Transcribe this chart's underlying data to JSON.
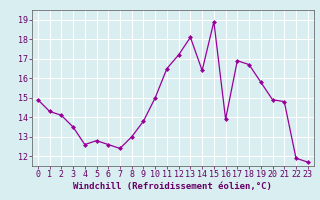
{
  "x": [
    0,
    1,
    2,
    3,
    4,
    5,
    6,
    7,
    8,
    9,
    10,
    11,
    12,
    13,
    14,
    15,
    16,
    17,
    18,
    19,
    20,
    21,
    22,
    23
  ],
  "y": [
    14.9,
    14.3,
    14.1,
    13.5,
    12.6,
    12.8,
    12.6,
    12.4,
    13.0,
    13.8,
    15.0,
    16.5,
    17.2,
    18.1,
    16.4,
    18.9,
    13.9,
    16.9,
    16.7,
    15.8,
    14.9,
    14.8,
    11.9,
    11.7
  ],
  "line_color": "#990099",
  "marker": "D",
  "marker_size": 2.0,
  "line_width": 0.9,
  "bg_color": "#d8eef0",
  "grid_color": "#ffffff",
  "xlabel": "Windchill (Refroidissement éolien,°C)",
  "xlabel_fontsize": 6.5,
  "tick_fontsize": 6.0,
  "ylim": [
    11.5,
    19.5
  ],
  "yticks": [
    12,
    13,
    14,
    15,
    16,
    17,
    18,
    19
  ],
  "xlim": [
    -0.5,
    23.5
  ],
  "xtick_labels": [
    "0",
    "1",
    "2",
    "3",
    "4",
    "5",
    "6",
    "7",
    "8",
    "9",
    "10",
    "11",
    "12",
    "13",
    "14",
    "15",
    "16",
    "17",
    "18",
    "19",
    "20",
    "21",
    "22",
    "23"
  ]
}
